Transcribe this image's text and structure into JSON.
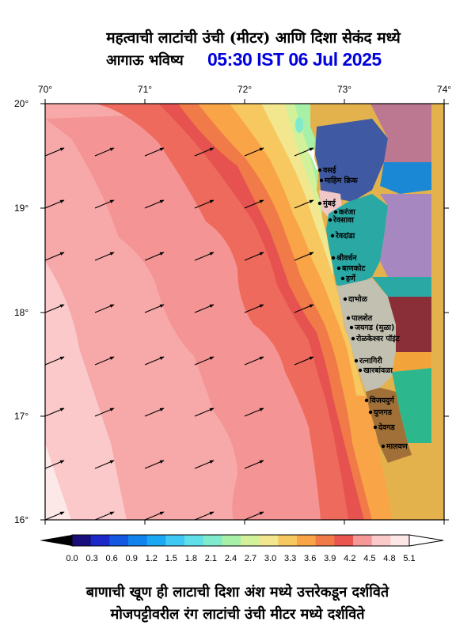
{
  "header": {
    "title_line1": "महत्वाची लाटांची उंची (मीटर) आणि दिशा सेकंद मध्ये",
    "title_line2_label": "आगाऊ भविष्य",
    "forecast_time": "05:30 IST 06 Jul 2025"
  },
  "map": {
    "lon_ticks": [
      "70°",
      "71°",
      "72°",
      "73°",
      "74°"
    ],
    "lat_ticks": [
      "20°",
      "19°",
      "18°",
      "17°",
      "16°"
    ],
    "places": [
      {
        "name": "वसई",
        "id": "vasai"
      },
      {
        "name": "माहिम क्रिक",
        "id": "mahim-creek"
      },
      {
        "name": "मुंबई",
        "id": "mumbai"
      },
      {
        "name": "करंजा",
        "id": "karanja"
      },
      {
        "name": "रेवसावा",
        "id": "revas"
      },
      {
        "name": "रेवदांडा",
        "id": "revdanda"
      },
      {
        "name": "श्रीवर्धन",
        "id": "shrivardhan"
      },
      {
        "name": "बाणकोट",
        "id": "bankot"
      },
      {
        "name": "हर्णे",
        "id": "harne"
      },
      {
        "name": "दाभोळ",
        "id": "dabhol"
      },
      {
        "name": "पालशेत",
        "id": "palshet"
      },
      {
        "name": "जयगड (मुळा)",
        "id": "jaigad"
      },
      {
        "name": "रोळकेश्वर पॉइंट",
        "id": "rolkeshwar-point"
      },
      {
        "name": "रत्नागिरी",
        "id": "ratnagiri"
      },
      {
        "name": "खारबांवळा",
        "id": "kharbanwala"
      },
      {
        "name": "विजयदुर्ग",
        "id": "vijaydurg"
      },
      {
        "name": "घुणगड",
        "id": "ghunagad"
      },
      {
        "name": "देवगड",
        "id": "devgad"
      },
      {
        "name": "मालवण",
        "id": "malvan"
      }
    ]
  },
  "colorbar": {
    "labels": [
      "0.0",
      "0.3",
      "0.6",
      "0.9",
      "1.2",
      "1.5",
      "1.8",
      "2.1",
      "2.4",
      "2.7",
      "3.0",
      "3.3",
      "3.6",
      "3.9",
      "4.2",
      "4.5",
      "4.8",
      "5.1"
    ],
    "colors": [
      "#1a0f7a",
      "#1d28c8",
      "#1457e0",
      "#1282ec",
      "#1ba8f2",
      "#3fc8f4",
      "#5fdfe8",
      "#7feacc",
      "#a6f0a8",
      "#d2f19a",
      "#f2e78e",
      "#f7c860",
      "#f9a447",
      "#f07a48",
      "#ea5550",
      "#f49898",
      "#fbc9c9",
      "#fde6e6"
    ],
    "under_color": "#000000",
    "over_color": "#ffffff"
  },
  "footer": {
    "line1": "बाणाची खूण ही लाटाची दिशा अंश मध्ये उत्तरेकडून दर्शविते",
    "line2": "मोजपट्टीवरील रंग लाटांची उंची मीटर मध्ये दर्शविते"
  },
  "colors": {
    "title_time": "#0000dd",
    "land_brown": "#e4b24c",
    "sea_far": "#fde8e8"
  }
}
